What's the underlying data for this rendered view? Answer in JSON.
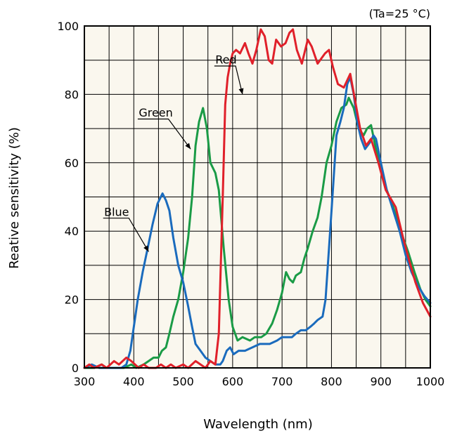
{
  "chart_data": {
    "type": "line",
    "condition": "(Ta=25 °C)",
    "xlabel": "Wavelength (nm)",
    "ylabel": "Reative sensitivity (%)",
    "xlim": [
      300,
      1000
    ],
    "ylim": [
      0,
      100
    ],
    "x_ticks": [
      "300",
      "400",
      "500",
      "600",
      "700",
      "800",
      "900",
      "1000"
    ],
    "y_ticks": [
      "0",
      "20",
      "40",
      "60",
      "80",
      "100"
    ],
    "grid": true,
    "background": "#faf7ee",
    "series": [
      {
        "name": "Red",
        "color": "#e0202a",
        "points": [
          [
            300,
            0
          ],
          [
            310,
            1
          ],
          [
            320,
            0
          ],
          [
            335,
            1
          ],
          [
            345,
            0
          ],
          [
            360,
            2
          ],
          [
            370,
            1
          ],
          [
            385,
            3
          ],
          [
            395,
            2
          ],
          [
            410,
            0
          ],
          [
            420,
            1
          ],
          [
            430,
            0
          ],
          [
            445,
            0
          ],
          [
            455,
            1
          ],
          [
            465,
            0
          ],
          [
            475,
            1
          ],
          [
            485,
            0
          ],
          [
            500,
            1
          ],
          [
            510,
            0
          ],
          [
            525,
            2
          ],
          [
            535,
            1
          ],
          [
            545,
            0
          ],
          [
            555,
            2
          ],
          [
            565,
            1
          ],
          [
            572,
            10
          ],
          [
            580,
            50
          ],
          [
            585,
            77
          ],
          [
            590,
            85
          ],
          [
            595,
            89
          ],
          [
            600,
            92
          ],
          [
            607,
            93
          ],
          [
            615,
            92
          ],
          [
            625,
            95
          ],
          [
            632,
            92
          ],
          [
            640,
            89
          ],
          [
            648,
            93
          ],
          [
            657,
            99
          ],
          [
            665,
            97
          ],
          [
            673,
            90
          ],
          [
            680,
            89
          ],
          [
            688,
            96
          ],
          [
            698,
            94
          ],
          [
            707,
            95
          ],
          [
            715,
            98
          ],
          [
            722,
            99
          ],
          [
            730,
            93
          ],
          [
            740,
            89
          ],
          [
            752,
            96
          ],
          [
            760,
            94
          ],
          [
            772,
            89
          ],
          [
            787,
            92
          ],
          [
            795,
            93
          ],
          [
            803,
            88
          ],
          [
            813,
            83
          ],
          [
            825,
            82
          ],
          [
            838,
            86
          ],
          [
            848,
            78
          ],
          [
            858,
            70
          ],
          [
            870,
            65
          ],
          [
            880,
            67
          ],
          [
            895,
            60
          ],
          [
            910,
            52
          ],
          [
            930,
            47
          ],
          [
            945,
            38
          ],
          [
            958,
            31
          ],
          [
            970,
            25
          ],
          [
            985,
            19
          ],
          [
            1000,
            15
          ]
        ]
      },
      {
        "name": "Green",
        "color": "#1a9b46",
        "points": [
          [
            300,
            0
          ],
          [
            320,
            0
          ],
          [
            335,
            1
          ],
          [
            345,
            0
          ],
          [
            360,
            0
          ],
          [
            380,
            0
          ],
          [
            395,
            1
          ],
          [
            405,
            0
          ],
          [
            420,
            1
          ],
          [
            430,
            2
          ],
          [
            440,
            3
          ],
          [
            450,
            3
          ],
          [
            457,
            5
          ],
          [
            465,
            6
          ],
          [
            472,
            10
          ],
          [
            480,
            15
          ],
          [
            490,
            20
          ],
          [
            500,
            28
          ],
          [
            510,
            38
          ],
          [
            518,
            50
          ],
          [
            525,
            65
          ],
          [
            532,
            72
          ],
          [
            540,
            76
          ],
          [
            548,
            70
          ],
          [
            555,
            60
          ],
          [
            565,
            57
          ],
          [
            572,
            52
          ],
          [
            582,
            35
          ],
          [
            592,
            20
          ],
          [
            600,
            12
          ],
          [
            610,
            8
          ],
          [
            620,
            9
          ],
          [
            635,
            8
          ],
          [
            645,
            9
          ],
          [
            658,
            9
          ],
          [
            668,
            10
          ],
          [
            680,
            13
          ],
          [
            690,
            17
          ],
          [
            700,
            22
          ],
          [
            708,
            28
          ],
          [
            715,
            26
          ],
          [
            722,
            25
          ],
          [
            728,
            27
          ],
          [
            738,
            28
          ],
          [
            745,
            32
          ],
          [
            752,
            35
          ],
          [
            762,
            40
          ],
          [
            772,
            44
          ],
          [
            780,
            50
          ],
          [
            790,
            60
          ],
          [
            800,
            65
          ],
          [
            810,
            72
          ],
          [
            820,
            76
          ],
          [
            830,
            77
          ],
          [
            835,
            79
          ],
          [
            845,
            76
          ],
          [
            855,
            70
          ],
          [
            865,
            68
          ],
          [
            872,
            70
          ],
          [
            880,
            71
          ],
          [
            890,
            64
          ],
          [
            900,
            58
          ],
          [
            912,
            52
          ],
          [
            925,
            47
          ],
          [
            940,
            40
          ],
          [
            955,
            34
          ],
          [
            968,
            28
          ],
          [
            980,
            23
          ],
          [
            990,
            20
          ],
          [
            1000,
            18
          ]
        ]
      },
      {
        "name": "Blue",
        "color": "#1a6bbd",
        "points": [
          [
            300,
            0
          ],
          [
            315,
            1
          ],
          [
            330,
            0
          ],
          [
            345,
            0
          ],
          [
            360,
            0
          ],
          [
            375,
            0
          ],
          [
            385,
            1
          ],
          [
            393,
            5
          ],
          [
            400,
            12
          ],
          [
            408,
            20
          ],
          [
            418,
            28
          ],
          [
            428,
            35
          ],
          [
            438,
            42
          ],
          [
            448,
            48
          ],
          [
            458,
            51
          ],
          [
            465,
            49
          ],
          [
            472,
            46
          ],
          [
            480,
            38
          ],
          [
            490,
            30
          ],
          [
            500,
            25
          ],
          [
            510,
            18
          ],
          [
            518,
            12
          ],
          [
            525,
            7
          ],
          [
            535,
            5
          ],
          [
            545,
            3
          ],
          [
            555,
            2
          ],
          [
            565,
            1
          ],
          [
            575,
            1
          ],
          [
            580,
            2
          ],
          [
            588,
            5
          ],
          [
            595,
            6
          ],
          [
            602,
            4
          ],
          [
            612,
            5
          ],
          [
            625,
            5
          ],
          [
            640,
            6
          ],
          [
            655,
            7
          ],
          [
            665,
            7
          ],
          [
            675,
            7
          ],
          [
            690,
            8
          ],
          [
            700,
            9
          ],
          [
            710,
            9
          ],
          [
            720,
            9
          ],
          [
            728,
            10
          ],
          [
            738,
            11
          ],
          [
            748,
            11
          ],
          [
            757,
            12
          ],
          [
            765,
            13
          ],
          [
            772,
            14
          ],
          [
            782,
            15
          ],
          [
            788,
            20
          ],
          [
            795,
            35
          ],
          [
            802,
            50
          ],
          [
            810,
            68
          ],
          [
            818,
            72
          ],
          [
            825,
            76
          ],
          [
            832,
            83
          ],
          [
            838,
            85
          ],
          [
            845,
            80
          ],
          [
            852,
            72
          ],
          [
            860,
            67
          ],
          [
            868,
            64
          ],
          [
            878,
            66
          ],
          [
            885,
            68
          ],
          [
            890,
            67
          ],
          [
            900,
            60
          ],
          [
            912,
            52
          ],
          [
            925,
            46
          ],
          [
            938,
            40
          ],
          [
            950,
            33
          ],
          [
            962,
            28
          ],
          [
            975,
            24
          ],
          [
            988,
            21
          ],
          [
            1000,
            19
          ]
        ]
      }
    ]
  }
}
